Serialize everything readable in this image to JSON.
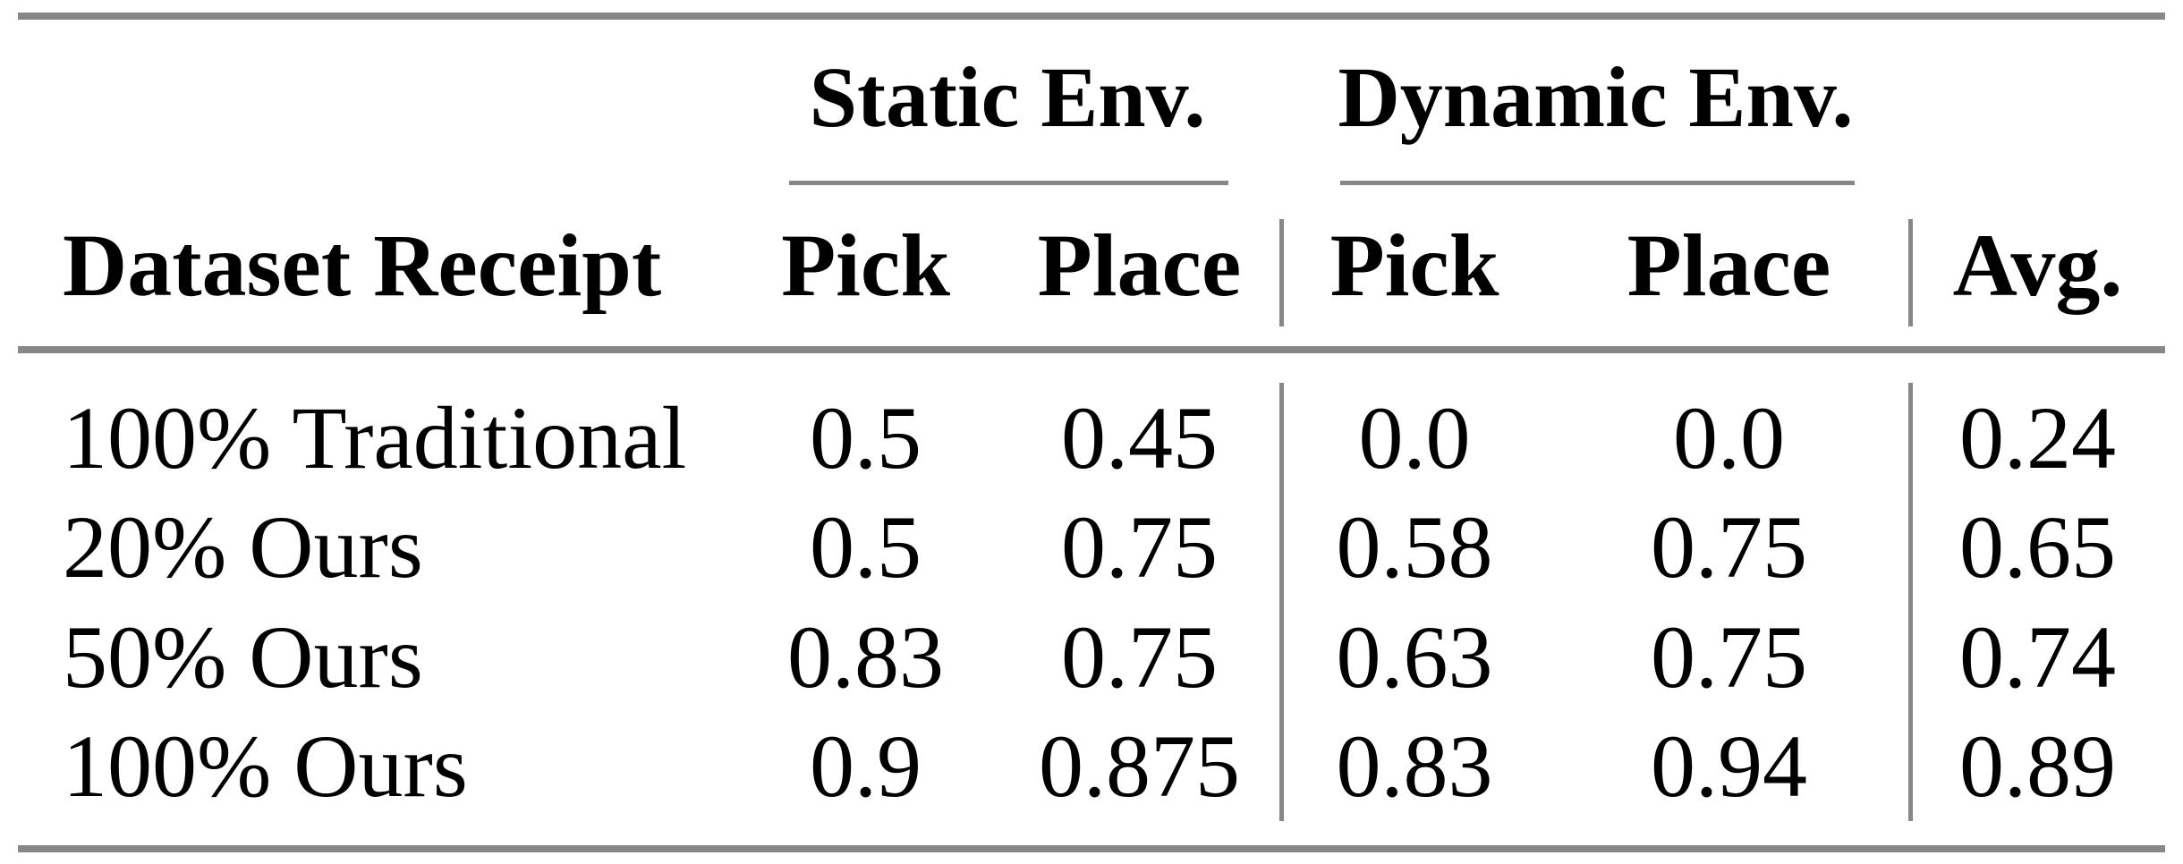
{
  "table": {
    "groups": [
      {
        "label": "Static Env."
      },
      {
        "label": "Dynamic Env."
      }
    ],
    "headers": [
      "Dataset Receipt",
      "Pick",
      "Place",
      "Pick",
      "Place",
      "Avg."
    ],
    "rows": [
      [
        "100% Traditional",
        "0.5",
        "0.45",
        "0.0",
        "0.0",
        "0.24"
      ],
      [
        "20% Ours",
        "0.5",
        "0.75",
        "0.58",
        "0.75",
        "0.65"
      ],
      [
        "50% Ours",
        "0.83",
        "0.75",
        "0.63",
        "0.75",
        "0.74"
      ],
      [
        "100% Ours",
        "0.9",
        "0.875",
        "0.83",
        "0.94",
        "0.89"
      ]
    ]
  },
  "colors": {
    "rule_gray": "#878787",
    "text": "#000000",
    "background": "#ffffff"
  },
  "chart_data": {
    "type": "table",
    "column_groups": [
      {
        "label": "Static Env.",
        "columns": [
          1,
          2
        ]
      },
      {
        "label": "Dynamic Env.",
        "columns": [
          3,
          4
        ]
      }
    ],
    "columns": [
      "Dataset Receipt",
      "Static Env. Pick",
      "Static Env. Place",
      "Dynamic Env. Pick",
      "Dynamic Env. Place",
      "Avg."
    ],
    "rows": [
      [
        "100% Traditional",
        0.5,
        0.45,
        0.0,
        0.0,
        0.24
      ],
      [
        "20% Ours",
        0.5,
        0.75,
        0.58,
        0.75,
        0.65
      ],
      [
        "50% Ours",
        0.83,
        0.75,
        0.63,
        0.75,
        0.74
      ],
      [
        "100% Ours",
        0.9,
        0.875,
        0.83,
        0.94,
        0.89
      ]
    ]
  }
}
